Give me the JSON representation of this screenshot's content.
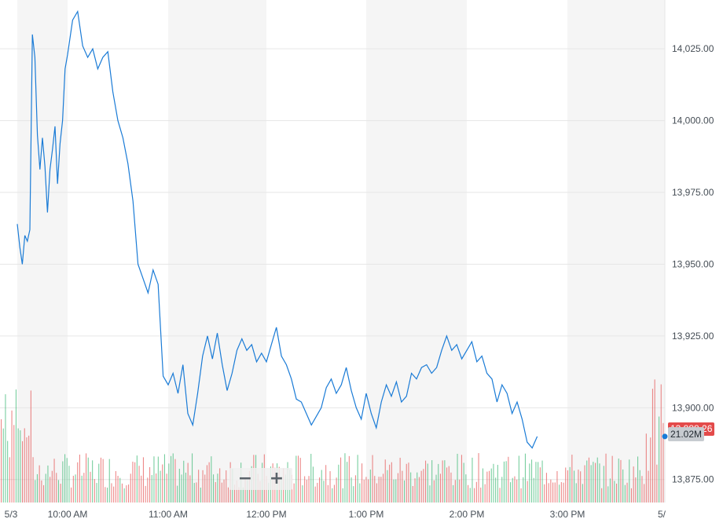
{
  "chart_data": {
    "type": "line",
    "x_tick_labels": [
      "5/3",
      "10:00 AM",
      "11:00 AM",
      "12:00 PM",
      "1:00 PM",
      "2:00 PM",
      "3:00 PM",
      "5/"
    ],
    "y_tick_labels": [
      "14,025.00",
      "14,000.00",
      "13,975.00",
      "13,950.00",
      "13,925.00",
      "13,900.00",
      "13,875.00"
    ],
    "ylim": [
      13867,
      14042
    ],
    "grid": true,
    "series": [
      {
        "color": "#1a7bd6",
        "values": [
          [
            0.0,
            13964
          ],
          [
            0.05,
            13956
          ],
          [
            0.1,
            13950
          ],
          [
            0.15,
            13960
          ],
          [
            0.2,
            13958
          ],
          [
            0.25,
            13962
          ],
          [
            0.3,
            14030
          ],
          [
            0.35,
            14022
          ],
          [
            0.4,
            13995
          ],
          [
            0.45,
            13983
          ],
          [
            0.5,
            13994
          ],
          [
            0.55,
            13984
          ],
          [
            0.6,
            13968
          ],
          [
            0.65,
            13983
          ],
          [
            0.7,
            13990
          ],
          [
            0.75,
            13998
          ],
          [
            0.8,
            13978
          ],
          [
            0.85,
            13992
          ],
          [
            0.9,
            14000
          ],
          [
            0.95,
            14018
          ],
          [
            1.0,
            14023
          ],
          [
            1.05,
            14035
          ],
          [
            1.1,
            14038
          ],
          [
            1.15,
            14026
          ],
          [
            1.2,
            14022
          ],
          [
            1.25,
            14025
          ],
          [
            1.3,
            14018
          ],
          [
            1.35,
            14022
          ],
          [
            1.4,
            14024
          ],
          [
            1.45,
            14010
          ],
          [
            1.5,
            14000
          ],
          [
            1.55,
            13994
          ],
          [
            1.6,
            13985
          ],
          [
            1.65,
            13972
          ],
          [
            1.7,
            13950
          ],
          [
            1.75,
            13945
          ],
          [
            1.8,
            13940
          ],
          [
            1.85,
            13948
          ],
          [
            1.9,
            13943
          ],
          [
            1.95,
            13911
          ],
          [
            2.0,
            13908
          ],
          [
            2.05,
            13912
          ],
          [
            2.1,
            13905
          ],
          [
            2.15,
            13915
          ],
          [
            2.2,
            13898
          ],
          [
            2.25,
            13894
          ],
          [
            2.3,
            13905
          ],
          [
            2.35,
            13918
          ],
          [
            2.4,
            13925
          ],
          [
            2.45,
            13917
          ],
          [
            2.5,
            13926
          ],
          [
            2.55,
            13915
          ],
          [
            2.6,
            13906
          ],
          [
            2.65,
            13912
          ],
          [
            2.7,
            13920
          ],
          [
            2.75,
            13924
          ],
          [
            2.8,
            13920
          ],
          [
            2.85,
            13922
          ],
          [
            2.9,
            13916
          ],
          [
            2.95,
            13919
          ],
          [
            3.0,
            13916
          ],
          [
            3.05,
            13922
          ],
          [
            3.1,
            13928
          ],
          [
            3.15,
            13918
          ],
          [
            3.2,
            13915
          ],
          [
            3.25,
            13910
          ],
          [
            3.3,
            13903
          ],
          [
            3.35,
            13902
          ],
          [
            3.4,
            13898
          ],
          [
            3.45,
            13894
          ],
          [
            3.5,
            13897
          ],
          [
            3.55,
            13900
          ],
          [
            3.6,
            13907
          ],
          [
            3.65,
            13910
          ],
          [
            3.7,
            13905
          ],
          [
            3.75,
            13908
          ],
          [
            3.8,
            13914
          ],
          [
            3.85,
            13906
          ],
          [
            3.9,
            13900
          ],
          [
            3.95,
            13896
          ],
          [
            4.0,
            13905
          ],
          [
            4.05,
            13898
          ],
          [
            4.1,
            13893
          ],
          [
            4.15,
            13902
          ],
          [
            4.2,
            13908
          ],
          [
            4.25,
            13904
          ],
          [
            4.3,
            13909
          ],
          [
            4.35,
            13902
          ],
          [
            4.4,
            13904
          ],
          [
            4.45,
            13912
          ],
          [
            4.5,
            13910
          ],
          [
            4.55,
            13914
          ],
          [
            4.6,
            13915
          ],
          [
            4.65,
            13912
          ],
          [
            4.7,
            13914
          ],
          [
            4.75,
            13920
          ],
          [
            4.8,
            13925
          ],
          [
            4.85,
            13920
          ],
          [
            4.9,
            13922
          ],
          [
            4.95,
            13917
          ],
          [
            5.0,
            13920
          ],
          [
            5.05,
            13923
          ],
          [
            5.1,
            13916
          ],
          [
            5.15,
            13918
          ],
          [
            5.2,
            13912
          ],
          [
            5.25,
            13910
          ],
          [
            5.3,
            13902
          ],
          [
            5.35,
            13908
          ],
          [
            5.4,
            13905
          ],
          [
            5.45,
            13898
          ],
          [
            5.5,
            13902
          ],
          [
            5.55,
            13896
          ],
          [
            5.6,
            13888
          ],
          [
            5.65,
            13886
          ],
          [
            5.7,
            13890
          ]
        ]
      }
    ],
    "volume": {
      "last_label": "21.02M"
    },
    "price_badge_label": "13,888.26"
  },
  "controls": {
    "zoom_out": "−",
    "zoom_in": "+"
  }
}
